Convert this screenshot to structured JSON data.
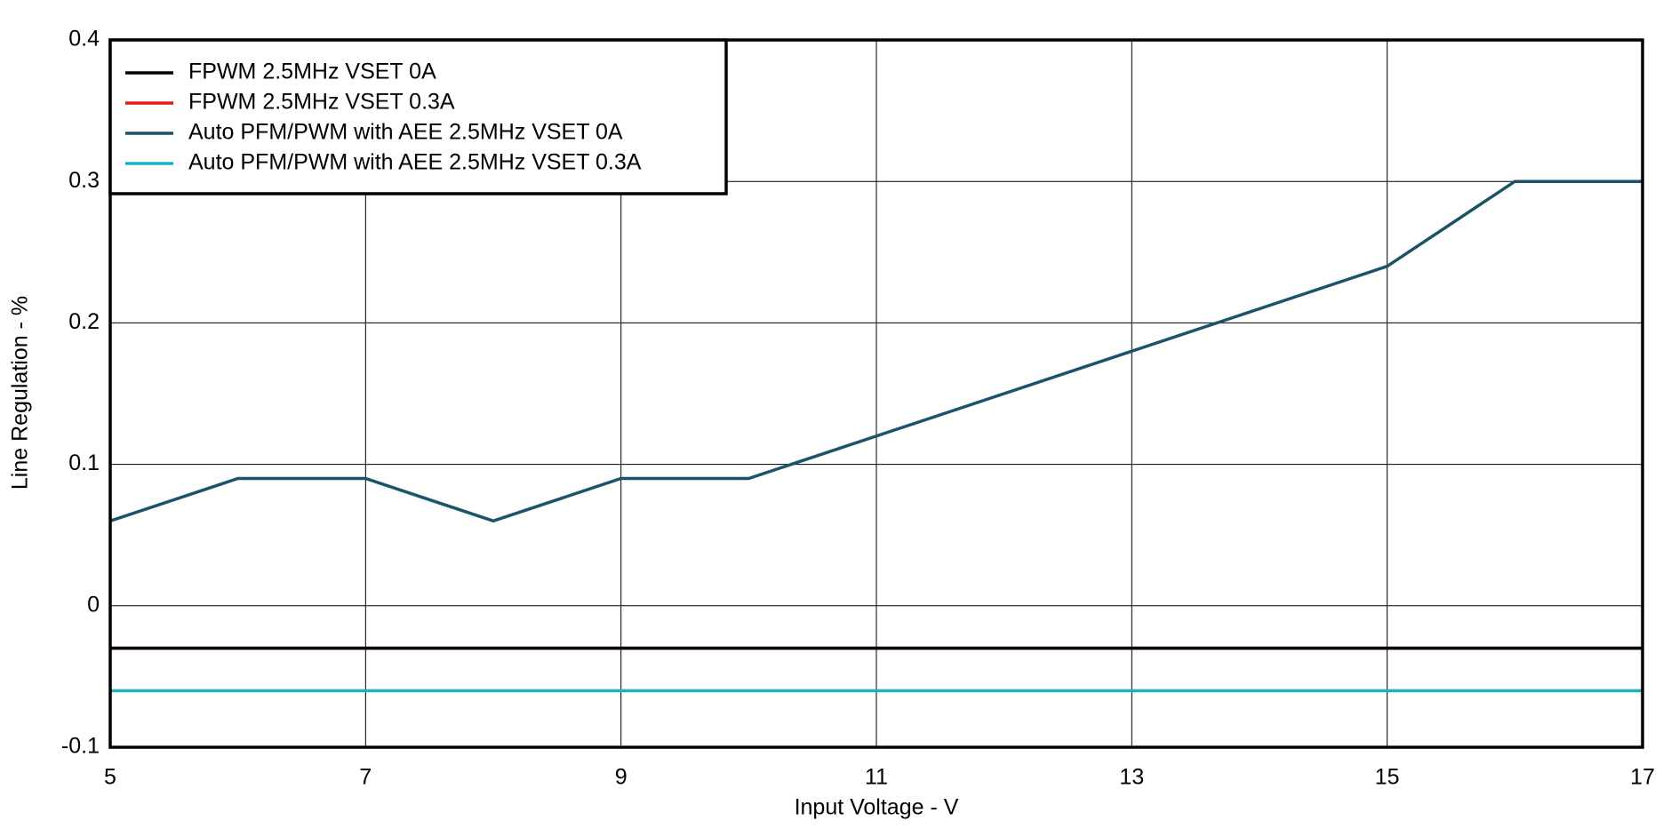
{
  "chart_data": {
    "type": "line",
    "x_label": "Input Voltage - V",
    "y_label": "Line Regulation - %",
    "x": [
      5,
      6,
      7,
      8,
      9,
      10,
      11,
      12,
      13,
      14,
      15,
      16,
      17
    ],
    "series": [
      {
        "name": "FPWM 2.5MHz VSET 0A",
        "color": "#000000",
        "values": [
          -0.03,
          -0.03,
          -0.03,
          -0.03,
          -0.03,
          -0.03,
          -0.03,
          -0.03,
          -0.03,
          -0.03,
          -0.03,
          -0.03,
          -0.03
        ]
      },
      {
        "name": "FPWM 2.5MHz VSET 0.3A",
        "color": "#e41a1c",
        "values": [
          -0.03,
          -0.03,
          -0.03,
          -0.03,
          -0.03,
          -0.03,
          -0.03,
          -0.03,
          -0.03,
          -0.03,
          -0.03,
          -0.03,
          -0.03
        ]
      },
      {
        "name": "Auto PFM/PWM with AEE 2.5MHz VSET 0A",
        "color": "#1b5468",
        "values": [
          0.06,
          0.09,
          0.09,
          0.06,
          0.09,
          0.09,
          0.12,
          0.15,
          0.18,
          0.21,
          0.24,
          0.3,
          0.3
        ]
      },
      {
        "name": "Auto PFM/PWM with AEE 2.5MHz VSET 0.3A",
        "color": "#1ab3c5",
        "values": [
          -0.06,
          -0.06,
          -0.06,
          -0.06,
          -0.06,
          -0.06,
          -0.06,
          -0.06,
          -0.06,
          -0.06,
          -0.06,
          -0.06,
          -0.06
        ]
      }
    ],
    "xlim": [
      5,
      17
    ],
    "xticks": [
      5,
      7,
      9,
      11,
      13,
      15,
      17
    ],
    "ylim": [
      -0.1,
      0.4
    ],
    "yticks": [
      -0.1,
      0,
      0.1,
      0.2,
      0.3,
      0.4
    ],
    "grid": true,
    "legend": "upper left"
  }
}
